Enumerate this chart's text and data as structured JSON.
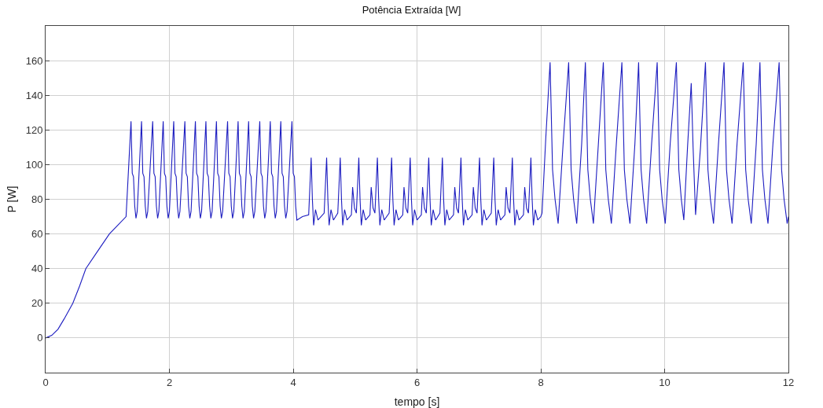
{
  "chart_data": {
    "type": "line",
    "title": "Potência Extraída [W]",
    "xlabel": "tempo [s]",
    "ylabel": "P [W]",
    "color": "#1c1cc0",
    "grid": true,
    "xlim": [
      0,
      12
    ],
    "xticks": [
      0,
      2,
      4,
      6,
      8,
      10,
      12
    ],
    "ylim": [
      -20,
      180
    ],
    "yticks": [
      0,
      20,
      40,
      60,
      80,
      100,
      120,
      140,
      160
    ],
    "x": [
      0,
      0.1,
      0.2,
      0.3,
      0.44,
      0.55,
      0.65,
      0.84,
      1.03,
      1.3,
      1.38,
      1.4,
      1.42,
      1.44,
      1.46,
      1.48,
      1.55,
      1.57,
      1.59,
      1.61,
      1.63,
      1.65,
      1.73,
      1.75,
      1.77,
      1.79,
      1.81,
      1.83,
      1.9,
      1.92,
      1.94,
      1.96,
      1.98,
      2.0,
      2.07,
      2.09,
      2.11,
      2.13,
      2.15,
      2.17,
      2.25,
      2.27,
      2.29,
      2.31,
      2.33,
      2.35,
      2.42,
      2.44,
      2.46,
      2.48,
      2.5,
      2.52,
      2.59,
      2.61,
      2.63,
      2.65,
      2.67,
      2.69,
      2.76,
      2.78,
      2.8,
      2.82,
      2.84,
      2.86,
      2.94,
      2.96,
      2.98,
      3.0,
      3.02,
      3.04,
      3.11,
      3.13,
      3.15,
      3.17,
      3.19,
      3.21,
      3.28,
      3.3,
      3.32,
      3.34,
      3.36,
      3.38,
      3.46,
      3.48,
      3.5,
      3.52,
      3.54,
      3.56,
      3.63,
      3.65,
      3.67,
      3.69,
      3.71,
      3.73,
      3.8,
      3.82,
      3.84,
      3.86,
      3.88,
      3.9,
      3.98,
      4.0,
      4.02,
      4.04,
      4.06,
      4.15,
      4.25,
      4.29,
      4.31,
      4.33,
      4.36,
      4.4,
      4.5,
      4.54,
      4.56,
      4.58,
      4.61,
      4.65,
      4.72,
      4.76,
      4.78,
      4.8,
      4.83,
      4.87,
      4.94,
      4.96,
      4.99,
      5.02,
      5.06,
      5.08,
      5.1,
      5.13,
      5.17,
      5.24,
      5.26,
      5.29,
      5.32,
      5.36,
      5.38,
      5.4,
      5.43,
      5.47,
      5.55,
      5.59,
      5.61,
      5.63,
      5.66,
      5.7,
      5.77,
      5.79,
      5.82,
      5.85,
      5.89,
      5.91,
      5.93,
      5.96,
      6.0,
      6.07,
      6.09,
      6.12,
      6.15,
      6.19,
      6.21,
      6.23,
      6.26,
      6.3,
      6.37,
      6.41,
      6.43,
      6.45,
      6.48,
      6.52,
      6.59,
      6.61,
      6.64,
      6.67,
      6.71,
      6.73,
      6.75,
      6.78,
      6.82,
      6.89,
      6.91,
      6.94,
      6.97,
      7.01,
      7.03,
      7.05,
      7.08,
      7.12,
      7.2,
      7.24,
      7.26,
      7.28,
      7.31,
      7.35,
      7.42,
      7.44,
      7.47,
      7.5,
      7.54,
      7.56,
      7.58,
      7.61,
      7.65,
      7.72,
      7.74,
      7.77,
      7.8,
      7.84,
      7.86,
      7.88,
      7.91,
      7.95,
      8.0,
      8.02,
      8.08,
      8.15,
      8.19,
      8.23,
      8.28,
      8.36,
      8.45,
      8.49,
      8.53,
      8.58,
      8.66,
      8.72,
      8.76,
      8.8,
      8.85,
      8.93,
      9.01,
      9.05,
      9.09,
      9.14,
      9.22,
      9.31,
      9.35,
      9.39,
      9.44,
      9.52,
      9.58,
      9.62,
      9.66,
      9.71,
      9.79,
      9.88,
      9.92,
      9.96,
      10.01,
      10.09,
      10.19,
      10.23,
      10.27,
      10.31,
      10.37,
      10.43,
      10.46,
      10.5,
      10.58,
      10.66,
      10.7,
      10.74,
      10.79,
      10.87,
      10.96,
      11.0,
      11.04,
      11.09,
      11.17,
      11.27,
      11.31,
      11.35,
      11.4,
      11.48,
      11.54,
      11.58,
      11.62,
      11.67,
      11.75,
      11.85,
      11.89,
      11.93,
      11.98,
      12.0
    ],
    "values": [
      0,
      1.5,
      5,
      11,
      20,
      30,
      40,
      50,
      60,
      70,
      125,
      95,
      93,
      76,
      69,
      73,
      125,
      95,
      93,
      76,
      69,
      73,
      125,
      95,
      93,
      76,
      69,
      73,
      125,
      95,
      93,
      76,
      69,
      73,
      125,
      95,
      93,
      76,
      69,
      73,
      125,
      95,
      93,
      76,
      69,
      73,
      125,
      95,
      93,
      76,
      69,
      73,
      125,
      95,
      93,
      76,
      69,
      73,
      125,
      95,
      93,
      76,
      69,
      73,
      125,
      95,
      93,
      76,
      69,
      73,
      125,
      95,
      93,
      76,
      69,
      73,
      125,
      95,
      93,
      76,
      69,
      73,
      125,
      95,
      93,
      76,
      69,
      73,
      125,
      95,
      93,
      76,
      69,
      73,
      125,
      95,
      93,
      76,
      69,
      73,
      125,
      95,
      93,
      76,
      68,
      70,
      71,
      104,
      80,
      65,
      74,
      68,
      72,
      104,
      80,
      65,
      74,
      68,
      72,
      104,
      80,
      65,
      74,
      68,
      71,
      87,
      75,
      72,
      104,
      80,
      65,
      74,
      68,
      71,
      87,
      75,
      72,
      104,
      80,
      65,
      74,
      68,
      72,
      104,
      80,
      65,
      74,
      68,
      71,
      87,
      75,
      72,
      104,
      80,
      65,
      74,
      68,
      71,
      87,
      75,
      72,
      104,
      80,
      65,
      74,
      68,
      72,
      104,
      80,
      65,
      74,
      68,
      71,
      87,
      75,
      72,
      104,
      80,
      65,
      74,
      68,
      71,
      87,
      75,
      72,
      104,
      80,
      65,
      74,
      68,
      72,
      104,
      80,
      65,
      74,
      68,
      71,
      87,
      75,
      72,
      104,
      80,
      65,
      74,
      68,
      71,
      87,
      75,
      72,
      104,
      80,
      65,
      74,
      68,
      70,
      72,
      115,
      159,
      97,
      80,
      66,
      112,
      159,
      97,
      80,
      66,
      112,
      159,
      97,
      80,
      66,
      112,
      159,
      97,
      80,
      66,
      112,
      159,
      97,
      80,
      66,
      112,
      159,
      97,
      80,
      66,
      112,
      159,
      97,
      80,
      66,
      112,
      159,
      97,
      80,
      68,
      110,
      147,
      110,
      71,
      110,
      159,
      97,
      80,
      66,
      112,
      159,
      97,
      80,
      66,
      112,
      159,
      97,
      80,
      66,
      112,
      159,
      97,
      80,
      66,
      112,
      159,
      97,
      80,
      66,
      70
    ]
  }
}
